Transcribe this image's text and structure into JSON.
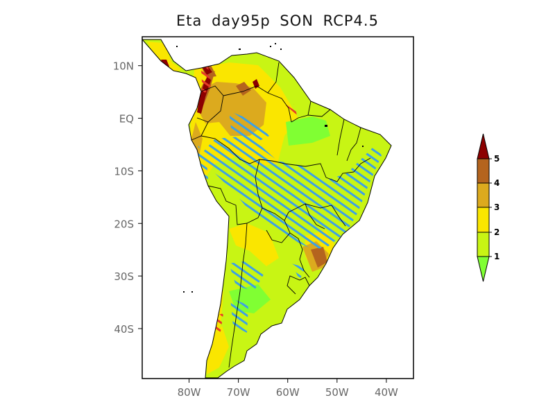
{
  "title": "Eta   day95p  SON  RCP4.5",
  "map": {
    "lat_ticks": [
      {
        "value": 10,
        "label": "10N"
      },
      {
        "value": 0,
        "label": "EQ"
      },
      {
        "value": -10,
        "label": "10S"
      },
      {
        "value": -20,
        "label": "20S"
      },
      {
        "value": -30,
        "label": "30S"
      },
      {
        "value": -40,
        "label": "40S"
      }
    ],
    "lon_ticks": [
      {
        "value": -80,
        "label": "80W"
      },
      {
        "value": -70,
        "label": "70W"
      },
      {
        "value": -60,
        "label": "60W"
      },
      {
        "value": -50,
        "label": "50W"
      },
      {
        "value": -40,
        "label": "40W"
      }
    ]
  },
  "colorbar": {
    "levels": [
      "1",
      "2",
      "3",
      "4",
      "5"
    ],
    "colors": {
      "below_1": "#80ff33",
      "1_2": "#c8f514",
      "2_3": "#fae600",
      "3_4": "#dcaa1e",
      "4_5": "#b4641e",
      "above_5": "#8c0000"
    }
  },
  "colors": {
    "hatch": "#3ca0e6",
    "red_hatch": "#e63c28",
    "border": "#000000"
  }
}
